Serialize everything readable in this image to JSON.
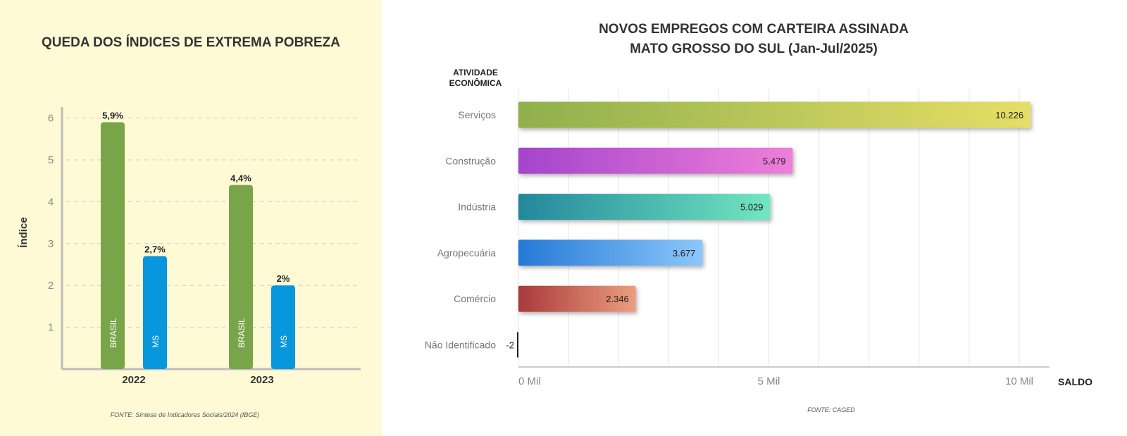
{
  "chart_data": [
    {
      "type": "bar",
      "title": "QUEDA DOS ÍNDICES DE EXTREMA POBREZA",
      "ylabel": "Índice",
      "xlabel": "",
      "ylim": [
        0,
        6.3
      ],
      "yticks": [
        "1",
        "2",
        "3",
        "4",
        "5",
        "6"
      ],
      "categories": [
        "2022",
        "2023"
      ],
      "series": [
        {
          "name": "BRASIL",
          "color": "#79a54a",
          "values": [
            5.9,
            4.4
          ],
          "labels": [
            "5,9%",
            "4,4%"
          ]
        },
        {
          "name": "MS",
          "color": "#0896dc",
          "values": [
            2.7,
            2.0
          ],
          "labels": [
            "2,7%",
            "2%"
          ]
        }
      ],
      "grid": true,
      "source": "FONTE: Síntese de Indicadores Sociais/2024 (IBGE)"
    },
    {
      "type": "bar",
      "orientation": "horizontal",
      "title": "NOVOS EMPREGOS COM CARTEIRA ASSINADA",
      "subtitle": "MATO GROSSO DO SUL (Jan-Jul/2025)",
      "ylabel_line1": "ATIVIDADE",
      "ylabel_line2": "ECONÔMICA",
      "xlabel": "SALDO",
      "xlim": [
        0,
        10500
      ],
      "xticks": [
        {
          "value": 0,
          "label": "0 Mil"
        },
        {
          "value": 5000,
          "label": "5 Mil"
        },
        {
          "value": 10000,
          "label": "10 Mil"
        }
      ],
      "categories": [
        "Serviços",
        "Construção",
        "Indústria",
        "Agropecuária",
        "Comércio",
        "Não Identificado"
      ],
      "values": [
        10226,
        5479,
        5029,
        3677,
        2346,
        -2
      ],
      "labels": [
        "10.226",
        "5.479",
        "5.029",
        "3.677",
        "2.346",
        "-2"
      ],
      "colors": [
        [
          "#8fb04c",
          "#e6de66"
        ],
        [
          "#a444cc",
          "#ef7fd9"
        ],
        [
          "#23879c",
          "#72e6c0"
        ],
        [
          "#2479d6",
          "#8cc7fb"
        ],
        [
          "#a83a3c",
          "#eb9e7f"
        ],
        [
          "#222222",
          "#222222"
        ]
      ],
      "grid": true,
      "source": "FONTE: CAGED"
    }
  ]
}
